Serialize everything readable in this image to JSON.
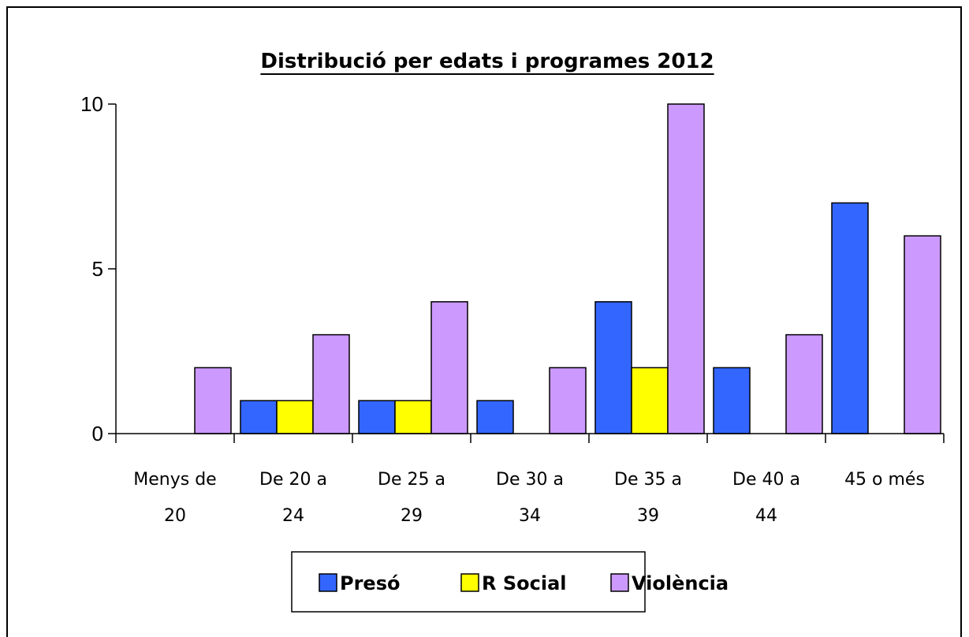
{
  "chart_data": {
    "type": "bar",
    "title": "Distribució per edats i programes 2012",
    "xlabel": "",
    "ylabel": "",
    "categories": [
      [
        "Menys de",
        "20"
      ],
      [
        "De 20 a",
        "24"
      ],
      [
        "De 25 a",
        "29"
      ],
      [
        "De 30 a",
        "34"
      ],
      [
        "De 35 a",
        "39"
      ],
      [
        "De 40 a",
        "44"
      ],
      [
        "45 o més",
        ""
      ]
    ],
    "series": [
      {
        "name": "Presó",
        "color": "#3366ff",
        "values": [
          0,
          1,
          1,
          1,
          4,
          2,
          7
        ]
      },
      {
        "name": "R Social",
        "color": "#ffff00",
        "values": [
          0,
          1,
          1,
          0,
          2,
          0,
          0
        ]
      },
      {
        "name": "Violència",
        "color": "#cc99ff",
        "values": [
          2,
          3,
          4,
          2,
          10,
          3,
          6
        ]
      }
    ],
    "yticks": [
      "0",
      "5",
      "10"
    ],
    "ylim": [
      0,
      10
    ],
    "grid": false,
    "legend_position": "bottom"
  }
}
